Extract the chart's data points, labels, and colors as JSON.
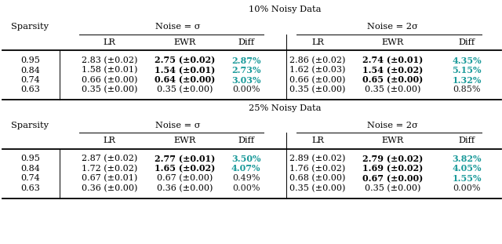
{
  "title1": "10% Noisy Data",
  "title2": "25% Noisy Data",
  "noise_sigma": "Noise = σ",
  "noise_2sigma": "Noise = 2σ",
  "sparsity_label": "Sparsity",
  "teal_color": "#1a9a9a",
  "table1": {
    "sparsity": [
      "0.95",
      "0.84",
      "0.74",
      "0.63"
    ],
    "noise_sigma": {
      "LR": [
        "2.83 (±0.02)",
        "1.58 (±0.01)",
        "0.66 (±0.00)",
        "0.35 (±0.00)"
      ],
      "EWR": [
        "2.75 (±0.02)",
        "1.54 (±0.01)",
        "0.64 (±0.00)",
        "0.35 (±0.00)"
      ],
      "EWR_bold": [
        true,
        true,
        true,
        false
      ],
      "Diff": [
        "2.87%",
        "2.73%",
        "3.03%",
        "0.00%"
      ],
      "Diff_teal": [
        true,
        true,
        true,
        false
      ]
    },
    "noise_2sigma": {
      "LR": [
        "2.86 (±0.02)",
        "1.62 (±0.03)",
        "0.66 (±0.00)",
        "0.35 (±0.00)"
      ],
      "EWR": [
        "2.74 (±0.01)",
        "1.54 (±0.02)",
        "0.65 (±0.00)",
        "0.35 (±0.00)"
      ],
      "EWR_bold": [
        true,
        true,
        true,
        false
      ],
      "Diff": [
        "4.35%",
        "5.15%",
        "1.32%",
        "0.85%"
      ],
      "Diff_teal": [
        true,
        true,
        true,
        false
      ]
    }
  },
  "table2": {
    "sparsity": [
      "0.95",
      "0.84",
      "0.74",
      "0.63"
    ],
    "noise_sigma": {
      "LR": [
        "2.87 (±0.02)",
        "1.72 (±0.02)",
        "0.67 (±0.01)",
        "0.36 (±0.00)"
      ],
      "EWR": [
        "2.77 (±0.01)",
        "1.65 (±0.02)",
        "0.67 (±0.00)",
        "0.36 (±0.00)"
      ],
      "EWR_bold": [
        true,
        true,
        false,
        false
      ],
      "Diff": [
        "3.50%",
        "4.07%",
        "0.49%",
        "0.00%"
      ],
      "Diff_teal": [
        true,
        true,
        false,
        false
      ]
    },
    "noise_2sigma": {
      "LR": [
        "2.89 (±0.02)",
        "1.76 (±0.02)",
        "0.68 (±0.00)",
        "0.35 (±0.00)"
      ],
      "EWR": [
        "2.79 (±0.02)",
        "1.69 (±0.02)",
        "0.67 (±0.00)",
        "0.35 (±0.00)"
      ],
      "EWR_bold": [
        true,
        true,
        true,
        false
      ],
      "Diff": [
        "3.82%",
        "4.05%",
        "1.55%",
        "0.00%"
      ],
      "Diff_teal": [
        true,
        true,
        true,
        false
      ]
    }
  },
  "figsize": [
    6.4,
    3.11
  ],
  "dpi": 100
}
